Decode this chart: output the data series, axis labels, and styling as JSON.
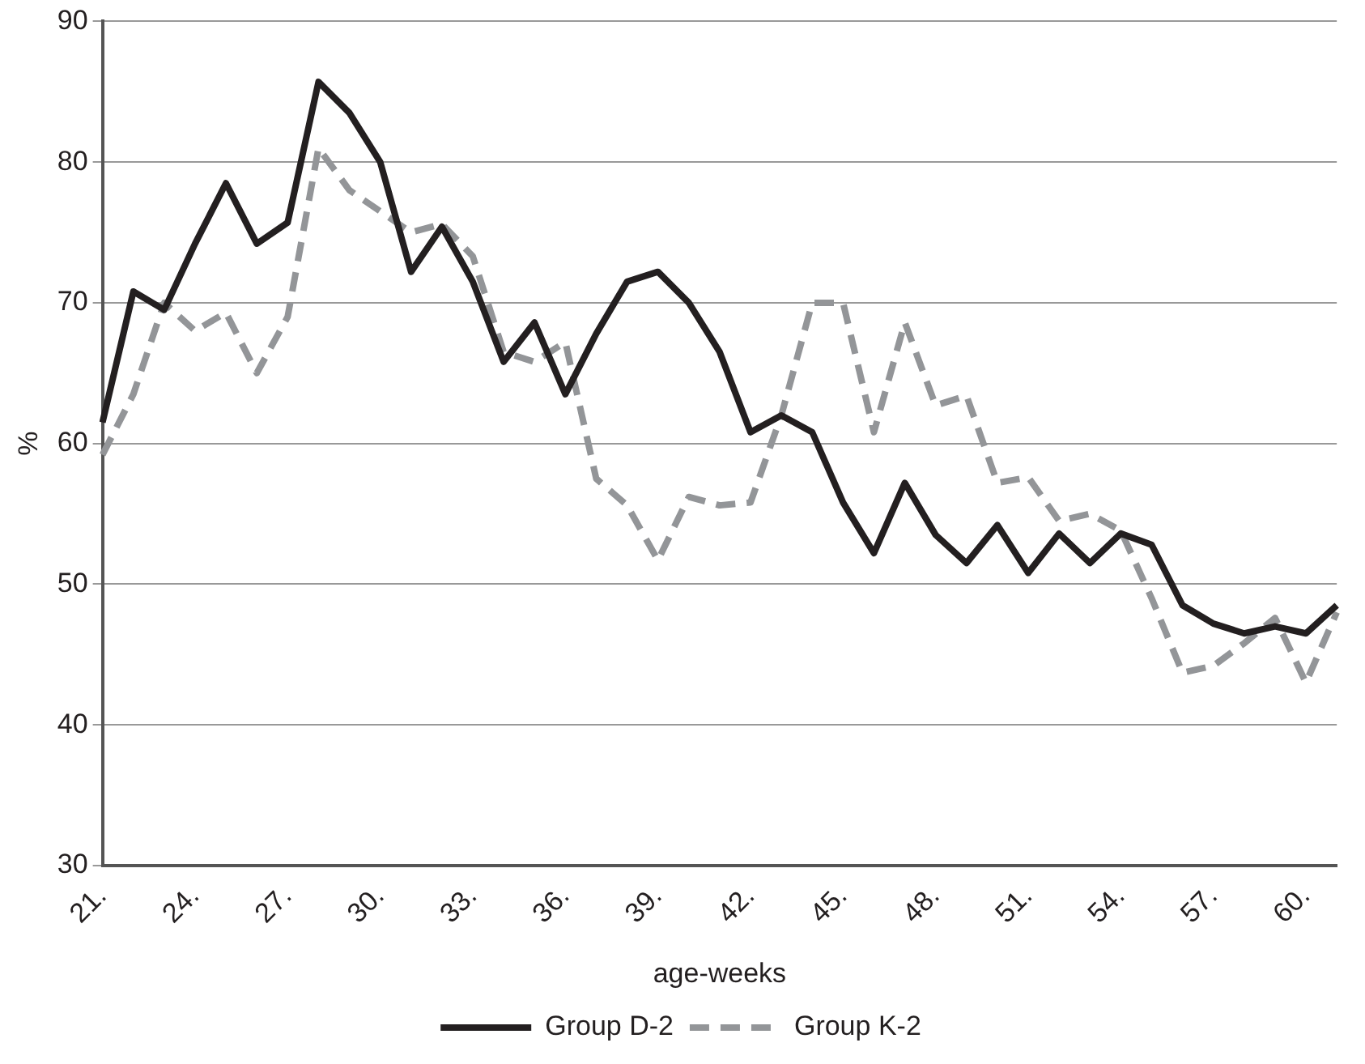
{
  "chart_data": {
    "type": "line",
    "xlabel": "age-weeks",
    "ylabel": "%",
    "categories": [
      "21.",
      null,
      null,
      "24.",
      null,
      null,
      "27.",
      null,
      null,
      "30.",
      null,
      null,
      "33.",
      null,
      null,
      "36.",
      null,
      null,
      "39.",
      null,
      null,
      "42.",
      null,
      null,
      "45.",
      null,
      null,
      "48.",
      null,
      null,
      "51.",
      null,
      null,
      "54.",
      null,
      null,
      "57.",
      null,
      null,
      "60.",
      null
    ],
    "series": [
      {
        "name": "Group D-2",
        "color": "#231f20",
        "line_style": "solid",
        "values": [
          61.5,
          70.8,
          69.5,
          74.2,
          78.5,
          74.2,
          75.7,
          85.7,
          83.5,
          80,
          72.2,
          75.4,
          71.5,
          65.8,
          68.6,
          63.5,
          67.8,
          71.5,
          72.2,
          70,
          66.5,
          60.8,
          62,
          60.8,
          55.8,
          52.2,
          57.2,
          53.5,
          51.5,
          54.2,
          50.8,
          53.6,
          51.5,
          53.6,
          52.8,
          48.5,
          47.2,
          46.5,
          47,
          46.5,
          48.5
        ]
      },
      {
        "name": "Group K-2",
        "color": "#939598",
        "line_style": "dashed",
        "values": [
          59.2,
          63.5,
          70,
          68,
          69.3,
          65,
          69,
          81,
          78,
          76.5,
          75,
          75.6,
          73.3,
          66.5,
          65.8,
          67.2,
          57.5,
          55.6,
          51.7,
          56.2,
          55.6,
          55.8,
          62,
          70,
          70,
          60.8,
          68.6,
          62.7,
          63.4,
          57.2,
          57.6,
          54.5,
          55,
          53.8,
          49,
          43.7,
          44.2,
          45.8,
          47.6,
          43,
          48
        ]
      }
    ],
    "ylim": [
      30,
      90
    ],
    "yticks": [
      30,
      40,
      50,
      60,
      70,
      80,
      90
    ],
    "grid": "y",
    "legend": "bottom",
    "marker": "none"
  }
}
